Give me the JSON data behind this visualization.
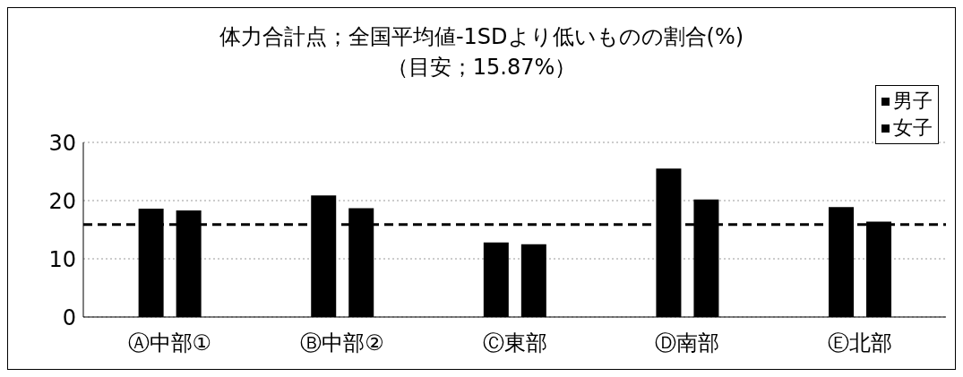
{
  "chart_data": {
    "type": "bar",
    "title": "体力合計点；全国平均値-1SDより低いものの割合(%)",
    "subtitle": "（目安；15.87%）",
    "categories": [
      "Ⓐ中部①",
      "Ⓑ中部②",
      "Ⓒ東部",
      "Ⓓ南部",
      "Ⓔ北部"
    ],
    "series": [
      {
        "name": "男子",
        "color": "#000000",
        "values": [
          18.6,
          20.9,
          12.8,
          25.5,
          18.9
        ]
      },
      {
        "name": "女子",
        "color": "#000000",
        "values": [
          18.3,
          18.7,
          12.5,
          20.2,
          16.4
        ]
      }
    ],
    "ylim": [
      0,
      30
    ],
    "yticks": [
      0,
      10,
      20,
      30
    ],
    "grid": "y",
    "legend": "top right",
    "ref_lines": [
      {
        "axis": "y",
        "value": 15.87,
        "color": "#000000",
        "line_style": "dashed"
      }
    ]
  }
}
